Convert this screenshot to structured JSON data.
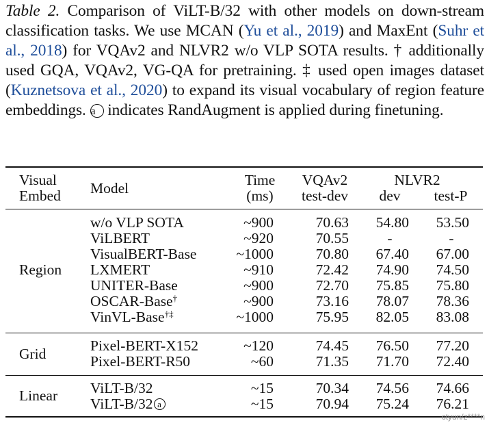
{
  "caption": {
    "label": "Table 2.",
    "part1": " Comparison of ViLT-B/32 with other models on down-stream classification tasks. We use MCAN (",
    "cite1": "Yu et al., 2019",
    "part2": ") and MaxEnt (",
    "cite2": "Suhr et al., 2018",
    "part3": ") for VQAv2 and NLVR2 w/o VLP SOTA results. † additionally used GQA, VQAv2, VG-QA for pretraining. ‡ used open images dataset (",
    "cite3": "Kuznetsova et al., 2020",
    "part4": ") to expand its visual vocabulary of region feature embeddings. ",
    "symbol": "a",
    "part5": " indicates RandAugment is applied during finetuning."
  },
  "header": {
    "visual_embed_1": "Visual",
    "visual_embed_2": "Embed",
    "model": "Model",
    "time_1": "Time",
    "time_2": "(ms)",
    "vqa_1": "VQAv2",
    "vqa_2": "test-dev",
    "nlvr_1": "NLVR2",
    "dev": "dev",
    "testp": "test-P"
  },
  "groups": {
    "region": "Region",
    "grid": "Grid",
    "linear": "Linear"
  },
  "rows": [
    {
      "model": "w/o VLP SOTA",
      "sup": "",
      "time": "~900",
      "vqa": "70.63",
      "dev": "54.80",
      "testp": "53.50"
    },
    {
      "model": "ViLBERT",
      "sup": "",
      "time": "~920",
      "vqa": "70.55",
      "dev": "-",
      "testp": "-"
    },
    {
      "model": "VisualBERT-Base",
      "sup": "",
      "time": "~1000",
      "vqa": "70.80",
      "dev": "67.40",
      "testp": "67.00"
    },
    {
      "model": "LXMERT",
      "sup": "",
      "time": "~910",
      "vqa": "72.42",
      "dev": "74.90",
      "testp": "74.50"
    },
    {
      "model": "UNITER-Base",
      "sup": "",
      "time": "~900",
      "vqa": "72.70",
      "dev": "75.85",
      "testp": "75.80"
    },
    {
      "model": "OSCAR-Base",
      "sup": "†",
      "time": "~900",
      "vqa": "73.16",
      "dev": "78.07",
      "testp": "78.36"
    },
    {
      "model": "VinVL-Base",
      "sup": "†‡",
      "time": "~1000",
      "vqa": "75.95",
      "dev": "82.05",
      "testp": "83.08"
    },
    {
      "model": "Pixel-BERT-X152",
      "sup": "",
      "time": "~120",
      "vqa": "74.45",
      "dev": "76.50",
      "testp": "77.20"
    },
    {
      "model": "Pixel-BERT-R50",
      "sup": "",
      "time": "~60",
      "vqa": "71.35",
      "dev": "71.70",
      "testp": "72.40"
    },
    {
      "model": "ViLT-B/32",
      "sup": "",
      "time": "~15",
      "vqa": "70.34",
      "dev": "74.56",
      "testp": "74.66"
    },
    {
      "model": "ViLT-B/32",
      "sup": "",
      "symbol": "a",
      "time": "~15",
      "vqa": "70.94",
      "dev": "75.24",
      "testp": "76.21"
    }
  ],
  "watermark": "ctyun/z****n"
}
